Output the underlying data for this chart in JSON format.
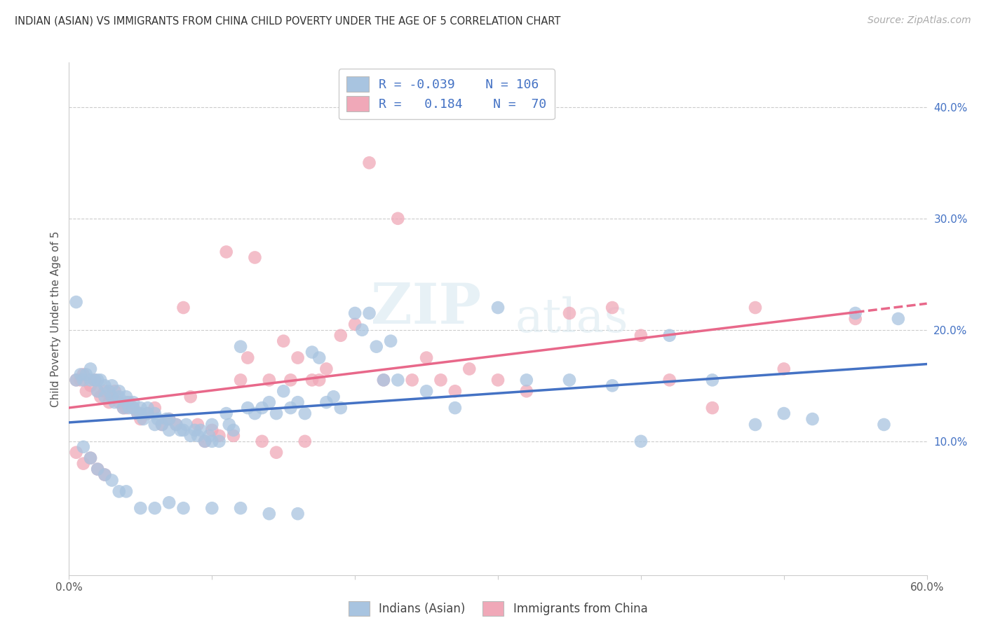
{
  "title": "INDIAN (ASIAN) VS IMMIGRANTS FROM CHINA CHILD POVERTY UNDER THE AGE OF 5 CORRELATION CHART",
  "source": "Source: ZipAtlas.com",
  "ylabel": "Child Poverty Under the Age of 5",
  "xlim": [
    0.0,
    0.6
  ],
  "ylim": [
    -0.02,
    0.44
  ],
  "yticks_right": [
    0.1,
    0.2,
    0.3,
    0.4
  ],
  "ytick_labels_right": [
    "10.0%",
    "20.0%",
    "30.0%",
    "40.0%"
  ],
  "color_blue": "#a8c4e0",
  "color_pink": "#f0a8b8",
  "line_blue": "#4472c4",
  "line_pink": "#e8688a",
  "watermark_zip": "ZIP",
  "watermark_atlas": "atlas",
  "indian_x": [
    0.005,
    0.008,
    0.01,
    0.012,
    0.015,
    0.015,
    0.018,
    0.02,
    0.02,
    0.022,
    0.025,
    0.025,
    0.028,
    0.03,
    0.03,
    0.032,
    0.035,
    0.035,
    0.038,
    0.04,
    0.04,
    0.042,
    0.045,
    0.045,
    0.048,
    0.05,
    0.05,
    0.052,
    0.055,
    0.055,
    0.06,
    0.06,
    0.062,
    0.065,
    0.068,
    0.07,
    0.07,
    0.075,
    0.078,
    0.08,
    0.082,
    0.085,
    0.088,
    0.09,
    0.092,
    0.095,
    0.098,
    0.1,
    0.1,
    0.105,
    0.11,
    0.112,
    0.115,
    0.12,
    0.125,
    0.13,
    0.135,
    0.14,
    0.145,
    0.15,
    0.155,
    0.16,
    0.165,
    0.17,
    0.175,
    0.18,
    0.185,
    0.19,
    0.2,
    0.205,
    0.21,
    0.215,
    0.22,
    0.225,
    0.23,
    0.25,
    0.27,
    0.3,
    0.32,
    0.35,
    0.38,
    0.4,
    0.42,
    0.45,
    0.48,
    0.5,
    0.52,
    0.55,
    0.57,
    0.58,
    0.005,
    0.01,
    0.015,
    0.02,
    0.025,
    0.03,
    0.035,
    0.04,
    0.05,
    0.06,
    0.07,
    0.08,
    0.1,
    0.12,
    0.14,
    0.16
  ],
  "indian_y": [
    0.155,
    0.16,
    0.155,
    0.16,
    0.155,
    0.165,
    0.155,
    0.145,
    0.155,
    0.155,
    0.14,
    0.15,
    0.145,
    0.14,
    0.15,
    0.135,
    0.14,
    0.145,
    0.13,
    0.135,
    0.14,
    0.13,
    0.13,
    0.135,
    0.125,
    0.13,
    0.125,
    0.12,
    0.125,
    0.13,
    0.115,
    0.125,
    0.12,
    0.115,
    0.12,
    0.11,
    0.12,
    0.115,
    0.11,
    0.11,
    0.115,
    0.105,
    0.11,
    0.105,
    0.11,
    0.1,
    0.105,
    0.1,
    0.115,
    0.1,
    0.125,
    0.115,
    0.11,
    0.185,
    0.13,
    0.125,
    0.13,
    0.135,
    0.125,
    0.145,
    0.13,
    0.135,
    0.125,
    0.18,
    0.175,
    0.135,
    0.14,
    0.13,
    0.215,
    0.2,
    0.215,
    0.185,
    0.155,
    0.19,
    0.155,
    0.145,
    0.13,
    0.22,
    0.155,
    0.155,
    0.15,
    0.1,
    0.195,
    0.155,
    0.115,
    0.125,
    0.12,
    0.215,
    0.115,
    0.21,
    0.225,
    0.095,
    0.085,
    0.075,
    0.07,
    0.065,
    0.055,
    0.055,
    0.04,
    0.04,
    0.045,
    0.04,
    0.04,
    0.04,
    0.035,
    0.035
  ],
  "china_x": [
    0.005,
    0.008,
    0.01,
    0.012,
    0.015,
    0.018,
    0.02,
    0.022,
    0.025,
    0.028,
    0.03,
    0.032,
    0.035,
    0.038,
    0.04,
    0.042,
    0.045,
    0.048,
    0.05,
    0.055,
    0.06,
    0.065,
    0.07,
    0.075,
    0.08,
    0.085,
    0.09,
    0.095,
    0.1,
    0.105,
    0.11,
    0.115,
    0.12,
    0.125,
    0.13,
    0.135,
    0.14,
    0.145,
    0.15,
    0.155,
    0.16,
    0.165,
    0.17,
    0.175,
    0.18,
    0.19,
    0.2,
    0.21,
    0.22,
    0.23,
    0.24,
    0.25,
    0.26,
    0.27,
    0.28,
    0.3,
    0.32,
    0.35,
    0.38,
    0.4,
    0.42,
    0.45,
    0.48,
    0.5,
    0.55,
    0.005,
    0.01,
    0.015,
    0.02,
    0.025
  ],
  "china_y": [
    0.155,
    0.155,
    0.16,
    0.145,
    0.15,
    0.155,
    0.145,
    0.14,
    0.145,
    0.135,
    0.14,
    0.145,
    0.135,
    0.13,
    0.13,
    0.135,
    0.13,
    0.125,
    0.12,
    0.125,
    0.13,
    0.115,
    0.12,
    0.115,
    0.22,
    0.14,
    0.115,
    0.1,
    0.11,
    0.105,
    0.27,
    0.105,
    0.155,
    0.175,
    0.265,
    0.1,
    0.155,
    0.09,
    0.19,
    0.155,
    0.175,
    0.1,
    0.155,
    0.155,
    0.165,
    0.195,
    0.205,
    0.35,
    0.155,
    0.3,
    0.155,
    0.175,
    0.155,
    0.145,
    0.165,
    0.155,
    0.145,
    0.215,
    0.22,
    0.195,
    0.155,
    0.13,
    0.22,
    0.165,
    0.21,
    0.09,
    0.08,
    0.085,
    0.075,
    0.07
  ]
}
